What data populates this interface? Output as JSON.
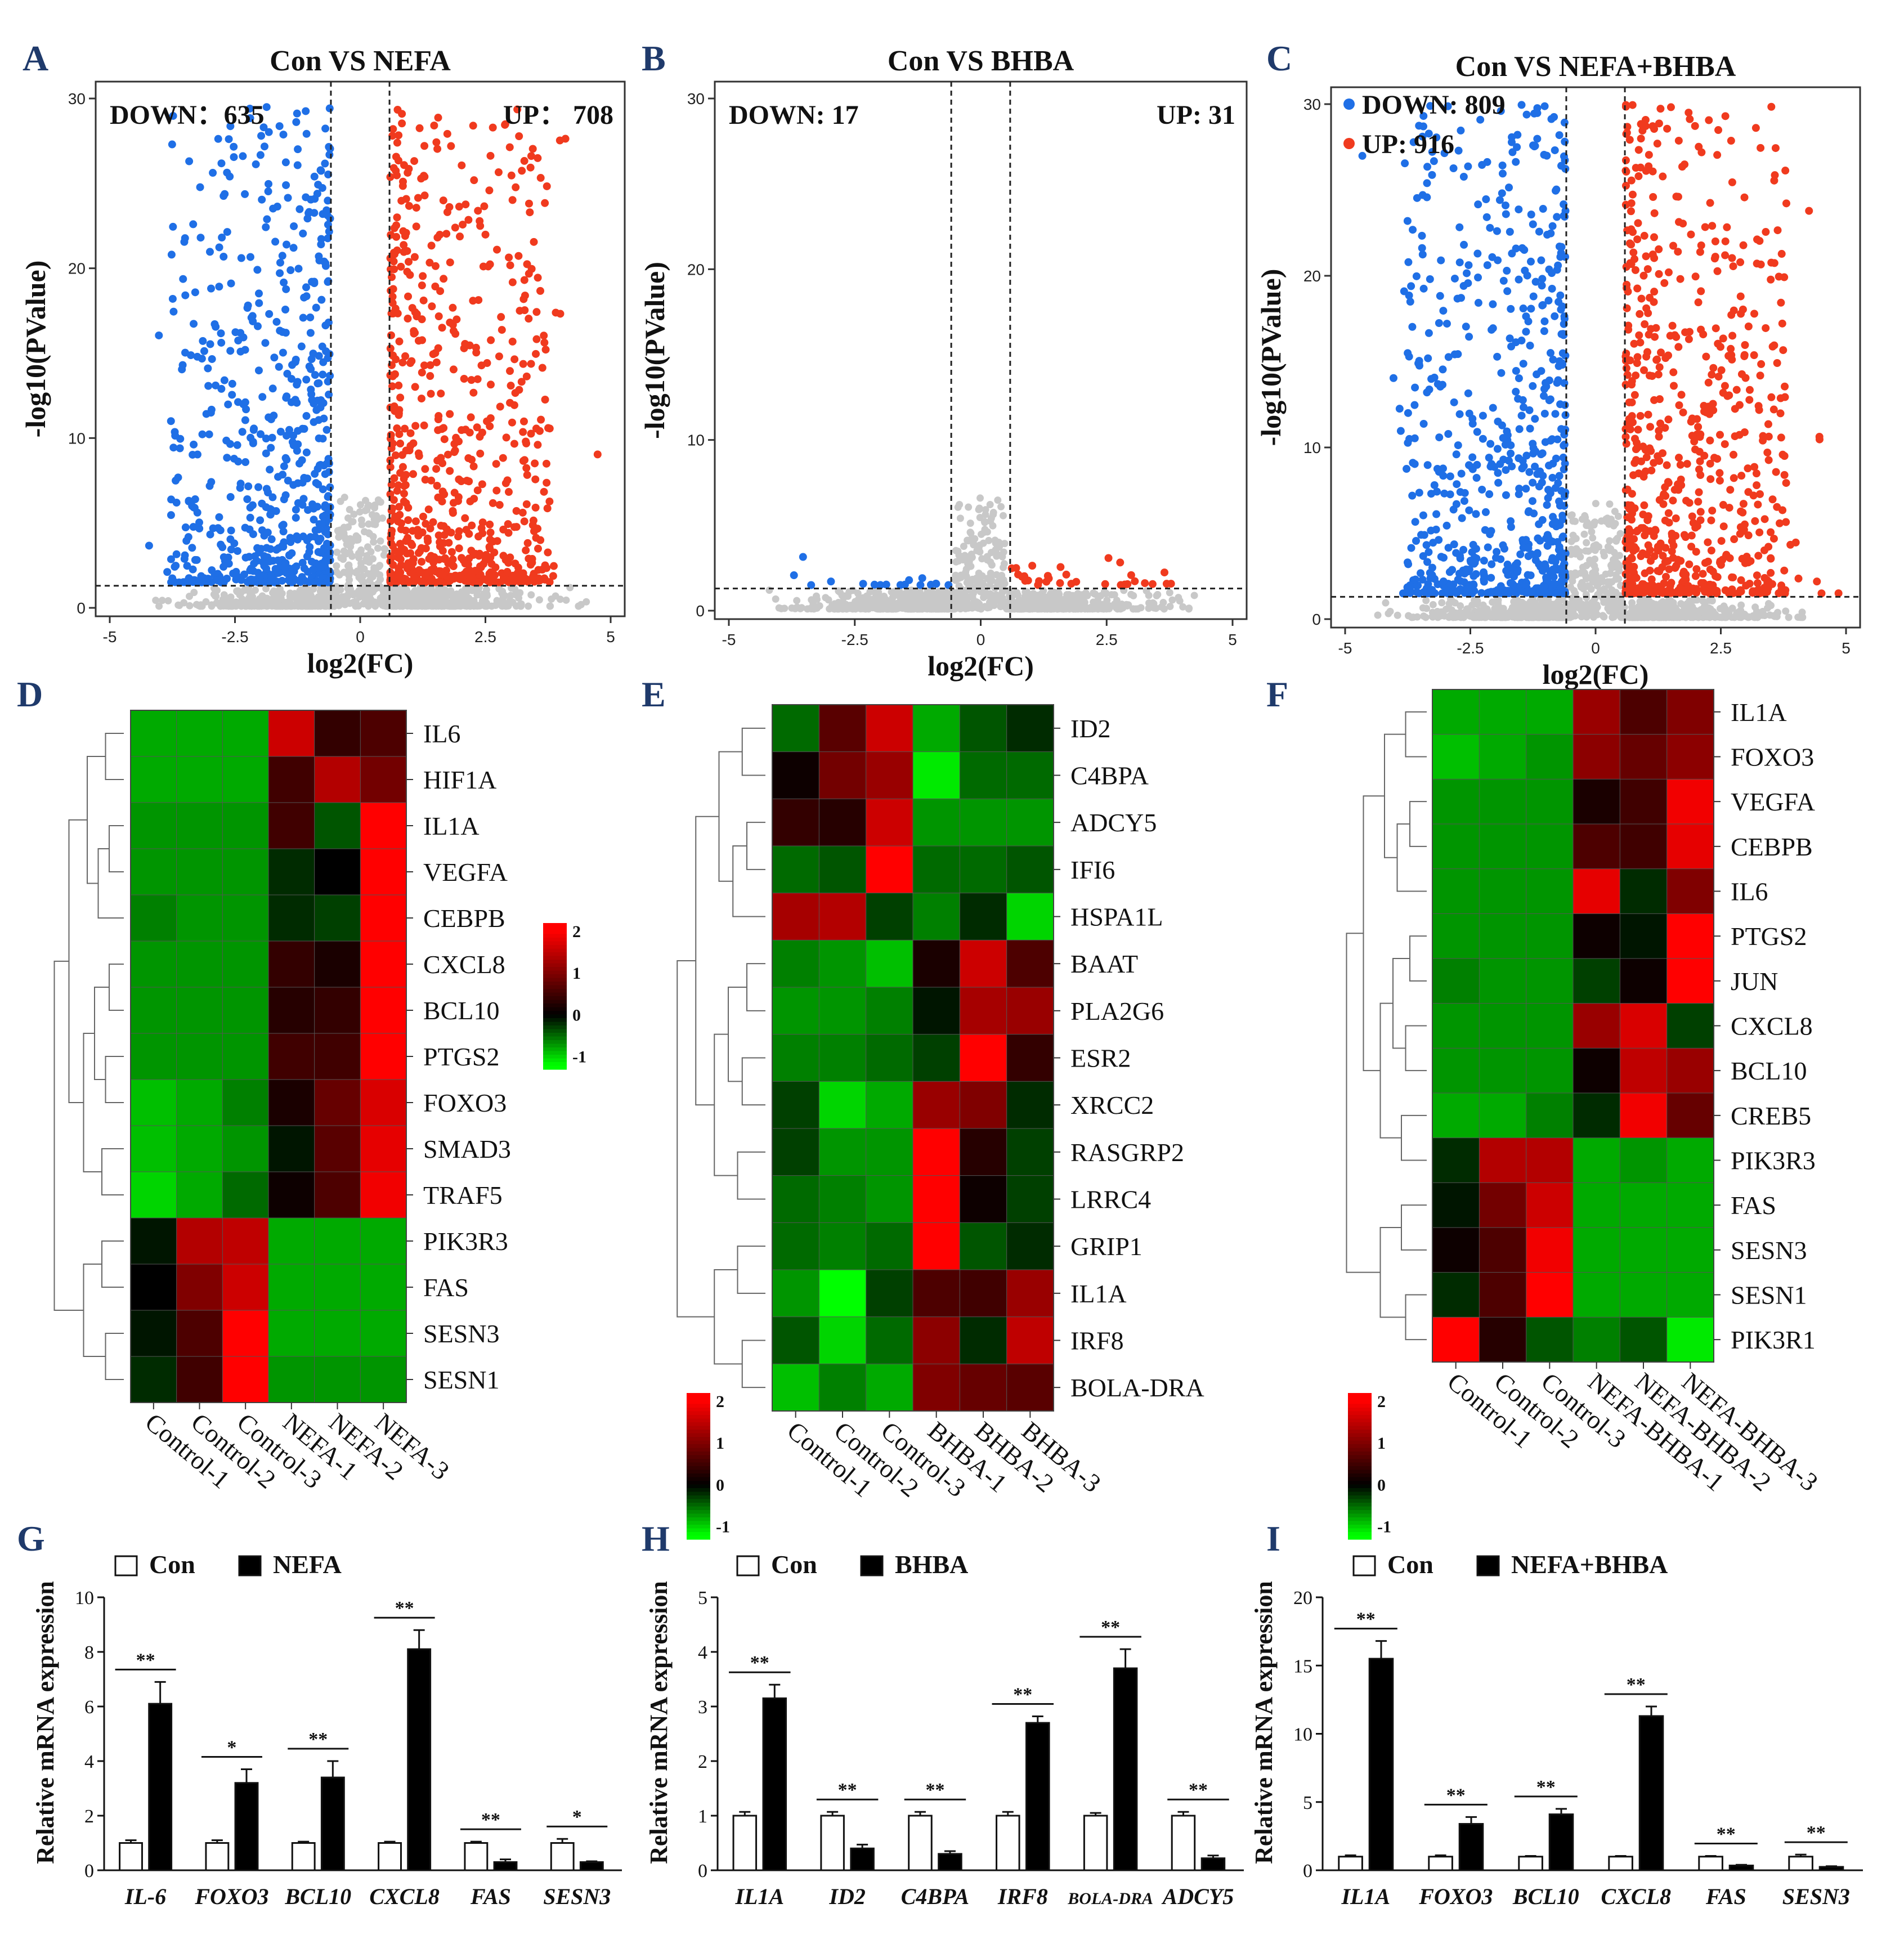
{
  "colors": {
    "up": "#f03a1e",
    "down": "#1f6fe6",
    "ns": "#c8c8c8",
    "heat_low": "#00ff00",
    "heat_mid": "#000000",
    "heat_high": "#ff0000",
    "bar_con": "#ffffff",
    "bar_treat": "#000000",
    "panel_letter": "#1f3a6b"
  },
  "chart_data": [
    {
      "type": "scatter",
      "panel": "A",
      "title": "Con VS NEFA",
      "xlabel": "log2(FC)",
      "ylabel": "-log10(PValue)",
      "xlim": [
        -5,
        5
      ],
      "ylim": [
        0,
        30
      ],
      "xticks": [
        "-5",
        "-2.5",
        "0",
        "2.5",
        "5"
      ],
      "yticks": [
        "0",
        "10",
        "20",
        "30"
      ],
      "fc_threshold": [
        -0.585,
        0.585
      ],
      "p_threshold": 1.3,
      "down_label": "DOWN：635",
      "up_label": "UP： 708",
      "down_count": 635,
      "up_count": 708,
      "seed": 11,
      "max_y": 29.5
    },
    {
      "type": "scatter",
      "panel": "B",
      "title": "Con VS BHBA",
      "xlabel": "log2(FC)",
      "ylabel": "-log10(PValue)",
      "xlim": [
        -5,
        5
      ],
      "ylim": [
        0,
        30
      ],
      "xticks": [
        "-5",
        "-2.5",
        "0",
        "2.5",
        "5"
      ],
      "yticks": [
        "0",
        "10",
        "20",
        "30"
      ],
      "fc_threshold": [
        -0.585,
        0.585
      ],
      "p_threshold": 1.3,
      "down_label": "DOWN: 17",
      "up_label": "UP: 31",
      "down_count": 17,
      "up_count": 31,
      "seed": 23,
      "max_y": 3.2
    },
    {
      "type": "scatter",
      "panel": "C",
      "title": "Con VS NEFA+BHBA",
      "xlabel": "log2(FC)",
      "ylabel": "-log10(PValue)",
      "xlim": [
        -5,
        5
      ],
      "ylim": [
        0,
        30
      ],
      "xticks": [
        "-5",
        "-2.5",
        "0",
        "2.5",
        "5"
      ],
      "yticks": [
        "0",
        "10",
        "20",
        "30"
      ],
      "fc_threshold": [
        -0.585,
        0.585
      ],
      "p_threshold": 1.3,
      "down_label": "DOWN: 809",
      "up_label": "UP: 916",
      "down_count": 809,
      "up_count": 916,
      "seed": 37,
      "max_y": 30
    },
    {
      "type": "heatmap",
      "panel": "D",
      "samples": [
        "Control-1",
        "Control-2",
        "Control-3",
        "NEFA-1",
        "NEFA-2",
        "NEFA-3"
      ],
      "genes": [
        "IL6",
        "HIF1A",
        "IL1A",
        "VEGFA",
        "CEBPB",
        "CXCL8",
        "BCL10",
        "PTGS2",
        "FOXO3",
        "SMAD3",
        "TRAF5",
        "PIK3R3",
        "FAS",
        "SESN3",
        "SESN1"
      ],
      "values": [
        [
          -0.8,
          -0.8,
          -0.8,
          1.6,
          0.4,
          0.6
        ],
        [
          -0.8,
          -0.8,
          -0.8,
          0.5,
          1.4,
          0.9
        ],
        [
          -0.7,
          -0.7,
          -0.7,
          0.5,
          -0.4,
          2.0
        ],
        [
          -0.7,
          -0.7,
          -0.7,
          -0.2,
          0.0,
          2.0
        ],
        [
          -0.6,
          -0.7,
          -0.7,
          -0.2,
          -0.3,
          2.0
        ],
        [
          -0.7,
          -0.7,
          -0.7,
          0.4,
          0.2,
          2.0
        ],
        [
          -0.7,
          -0.7,
          -0.7,
          0.3,
          0.4,
          2.0
        ],
        [
          -0.7,
          -0.7,
          -0.7,
          0.5,
          0.5,
          2.0
        ],
        [
          -0.9,
          -0.8,
          -0.6,
          0.2,
          0.8,
          1.7
        ],
        [
          -0.9,
          -0.8,
          -0.7,
          -0.1,
          0.7,
          1.8
        ],
        [
          -1.0,
          -0.8,
          -0.5,
          0.1,
          0.6,
          1.9
        ],
        [
          -0.1,
          1.4,
          1.5,
          -0.8,
          -0.8,
          -0.8
        ],
        [
          -0.0,
          1.0,
          1.6,
          -0.8,
          -0.8,
          -0.8
        ],
        [
          -0.1,
          0.6,
          2.0,
          -0.8,
          -0.8,
          -0.8
        ],
        [
          -0.2,
          0.5,
          2.0,
          -0.7,
          -0.7,
          -0.7
        ]
      ],
      "colorbar_ticks": [
        "2",
        "1",
        "0",
        "-1"
      ],
      "colorbar_range": [
        -1.3,
        2.2
      ]
    },
    {
      "type": "heatmap",
      "panel": "E",
      "samples": [
        "Control-1",
        "Control-2",
        "Control-3",
        "BHBA-1",
        "BHBA-2",
        "BHBA-3"
      ],
      "genes": [
        "ID2",
        "C4BPA",
        "ADCY5",
        "IFI6",
        "HSPA1L",
        "BAAT",
        "PLA2G6",
        "ESR2",
        "XRCC2",
        "RASGRP2",
        "LRRC4",
        "GRIP1",
        "IL1A",
        "IRF8",
        "BOLA-DRA"
      ],
      "values": [
        [
          -0.5,
          0.7,
          1.6,
          -0.8,
          -0.4,
          -0.2
        ],
        [
          0.1,
          0.9,
          1.2,
          -1.1,
          -0.5,
          -0.5
        ],
        [
          0.4,
          0.3,
          1.6,
          -0.7,
          -0.7,
          -0.7
        ],
        [
          -0.5,
          -0.4,
          2.0,
          -0.5,
          -0.5,
          -0.4
        ],
        [
          1.3,
          1.4,
          -0.3,
          -0.6,
          -0.2,
          -1.0
        ],
        [
          -0.6,
          -0.7,
          -0.9,
          0.2,
          1.6,
          0.6
        ],
        [
          -0.7,
          -0.7,
          -0.6,
          -0.1,
          1.3,
          1.2
        ],
        [
          -0.6,
          -0.6,
          -0.5,
          -0.3,
          2.0,
          0.4
        ],
        [
          -0.3,
          -1.0,
          -0.8,
          1.2,
          1.0,
          -0.2
        ],
        [
          -0.3,
          -0.7,
          -0.7,
          2.0,
          0.3,
          -0.3
        ],
        [
          -0.5,
          -0.6,
          -0.7,
          2.0,
          0.1,
          -0.3
        ],
        [
          -0.5,
          -0.6,
          -0.5,
          2.0,
          -0.4,
          -0.2
        ],
        [
          -0.7,
          -1.2,
          -0.3,
          0.6,
          0.5,
          1.2
        ],
        [
          -0.4,
          -1.0,
          -0.5,
          1.1,
          -0.2,
          1.5
        ],
        [
          -0.9,
          -0.6,
          -0.8,
          1.0,
          0.8,
          0.7
        ]
      ],
      "colorbar_ticks": [
        "2",
        "1",
        "0",
        "-1"
      ],
      "colorbar_range": [
        -1.3,
        2.2
      ]
    },
    {
      "type": "heatmap",
      "panel": "F",
      "samples": [
        "Control-1",
        "Control-2",
        "Control-3",
        "NEFA-BHBA-1",
        "NEFA-BHBA-2",
        "NEFA-BHBA-3"
      ],
      "genes": [
        "IL1A",
        "FOXO3",
        "VEGFA",
        "CEBPB",
        "IL6",
        "PTGS2",
        "JUN",
        "CXCL8",
        "BCL10",
        "CREB5",
        "PIK3R3",
        "FAS",
        "SESN3",
        "SESN1",
        "PIK3R1"
      ],
      "values": [
        [
          -0.8,
          -0.8,
          -0.8,
          1.2,
          0.6,
          1.0
        ],
        [
          -0.9,
          -0.8,
          -0.7,
          1.1,
          0.8,
          1.1
        ],
        [
          -0.7,
          -0.7,
          -0.7,
          0.2,
          0.5,
          1.9
        ],
        [
          -0.7,
          -0.7,
          -0.7,
          0.6,
          0.5,
          1.8
        ],
        [
          -0.7,
          -0.7,
          -0.7,
          1.8,
          -0.2,
          1.0
        ],
        [
          -0.7,
          -0.7,
          -0.7,
          0.1,
          -0.1,
          2.0
        ],
        [
          -0.6,
          -0.7,
          -0.7,
          -0.3,
          0.1,
          2.0
        ],
        [
          -0.7,
          -0.7,
          -0.7,
          1.2,
          1.7,
          -0.3
        ],
        [
          -0.7,
          -0.7,
          -0.7,
          0.1,
          1.5,
          1.2
        ],
        [
          -0.8,
          -0.8,
          -0.6,
          -0.2,
          1.9,
          0.8
        ],
        [
          -0.2,
          1.4,
          1.4,
          -0.8,
          -0.7,
          -0.8
        ],
        [
          -0.1,
          0.9,
          1.6,
          -0.8,
          -0.8,
          -0.8
        ],
        [
          0.1,
          0.6,
          1.9,
          -0.8,
          -0.8,
          -0.8
        ],
        [
          -0.2,
          0.6,
          2.0,
          -0.8,
          -0.8,
          -0.8
        ],
        [
          2.0,
          0.3,
          -0.4,
          -0.6,
          -0.4,
          -1.1
        ]
      ],
      "colorbar_ticks": [
        "2",
        "1",
        "0",
        "-1"
      ],
      "colorbar_range": [
        -1.3,
        2.2
      ]
    },
    {
      "type": "bar",
      "panel": "G",
      "ylabel": "Relative mRNA expression",
      "ylim": [
        0,
        10
      ],
      "yticks": [
        "0",
        "2",
        "4",
        "6",
        "8",
        "10"
      ],
      "categories": [
        "IL-6",
        "FOXO3",
        "BCL10",
        "CXCL8",
        "FAS",
        "SESN3"
      ],
      "series": [
        {
          "name": "Con",
          "values": [
            1.0,
            1.0,
            1.0,
            1.0,
            1.0,
            1.0
          ],
          "errors": [
            0.1,
            0.1,
            0.05,
            0.05,
            0.05,
            0.15
          ]
        },
        {
          "name": "NEFA",
          "values": [
            6.1,
            3.2,
            3.4,
            8.1,
            0.3,
            0.3
          ],
          "errors": [
            0.8,
            0.5,
            0.6,
            0.7,
            0.1,
            0.03
          ]
        }
      ],
      "significance": [
        "**",
        "*",
        "**",
        "**",
        "**",
        "*"
      ]
    },
    {
      "type": "bar",
      "panel": "H",
      "ylabel": "Relative mRNA expression",
      "ylim": [
        0,
        5
      ],
      "yticks": [
        "0",
        "1",
        "2",
        "3",
        "4",
        "5"
      ],
      "categories": [
        "IL1A",
        "ID2",
        "C4BPA",
        "IRF8",
        "BOLA-DRA",
        "ADCY5"
      ],
      "series": [
        {
          "name": "Con",
          "values": [
            1.0,
            1.0,
            1.0,
            1.0,
            1.0,
            1.0
          ],
          "errors": [
            0.07,
            0.07,
            0.07,
            0.07,
            0.05,
            0.07
          ]
        },
        {
          "name": "BHBA",
          "values": [
            3.15,
            0.4,
            0.3,
            2.7,
            3.7,
            0.22
          ],
          "errors": [
            0.25,
            0.07,
            0.05,
            0.12,
            0.35,
            0.05
          ]
        }
      ],
      "significance": [
        "**",
        "**",
        "**",
        "**",
        "**",
        "**"
      ]
    },
    {
      "type": "bar",
      "panel": "I",
      "ylabel": "Relative mRNA expression",
      "ylim": [
        0,
        20
      ],
      "yticks": [
        "0",
        "5",
        "10",
        "15",
        "20"
      ],
      "categories": [
        "IL1A",
        "FOXO3",
        "BCL10",
        "CXCL8",
        "FAS",
        "SESN3"
      ],
      "series": [
        {
          "name": "Con",
          "values": [
            1.0,
            1.0,
            1.0,
            1.0,
            1.0,
            1.0
          ],
          "errors": [
            0.1,
            0.1,
            0.05,
            0.05,
            0.05,
            0.15
          ]
        },
        {
          "name": "NEFA+BHBA",
          "values": [
            15.5,
            3.4,
            4.1,
            11.3,
            0.35,
            0.25
          ],
          "errors": [
            1.3,
            0.5,
            0.4,
            0.7,
            0.05,
            0.05
          ]
        }
      ],
      "significance": [
        "**",
        "**",
        "**",
        "**",
        "**",
        "**"
      ]
    }
  ]
}
